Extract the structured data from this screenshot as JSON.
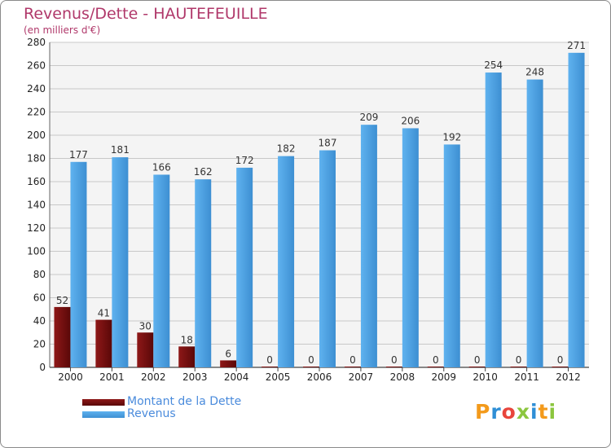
{
  "header": {
    "title": "Revenus/Dette - HAUTEFEUILLE",
    "subtitle": "(en milliers d'€)"
  },
  "logo": {
    "text": "Proxiti",
    "colors": [
      "#f39a1b",
      "#2f8fd6",
      "#e8453c",
      "#8cc63f",
      "#2f8fd6",
      "#f39a1b",
      "#8cc63f"
    ]
  },
  "colors": {
    "dette": "#7a0e0e",
    "revenus": "#4ea6e6",
    "grid": "#c8c8c8",
    "plot_bg": "#f4f4f4",
    "axis_text": "#222222",
    "value_text": "#333333"
  },
  "chart_data": {
    "type": "bar",
    "categories": [
      "2000",
      "2001",
      "2002",
      "2003",
      "2004",
      "2005",
      "2006",
      "2007",
      "2008",
      "2009",
      "2010",
      "2011",
      "2012"
    ],
    "series": [
      {
        "name": "Montant de la Dette",
        "values": [
          52,
          41,
          30,
          18,
          6,
          0,
          0,
          0,
          0,
          0,
          0,
          0,
          0
        ]
      },
      {
        "name": "Revenus",
        "values": [
          177,
          181,
          166,
          162,
          172,
          182,
          187,
          209,
          206,
          192,
          254,
          248,
          271
        ]
      }
    ],
    "ylim": [
      0,
      280
    ],
    "yticks": [
      0,
      20,
      40,
      60,
      80,
      100,
      120,
      140,
      160,
      180,
      200,
      220,
      240,
      260,
      280
    ],
    "grid": true,
    "legend_position": "bottom-left"
  }
}
